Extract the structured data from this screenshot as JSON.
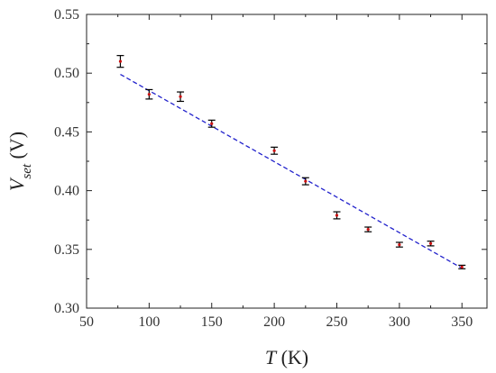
{
  "chart_data": {
    "type": "scatter",
    "x_label_var": "T",
    "x_label_unit": " (K)",
    "y_label_var": "V",
    "y_label_sub": "set",
    "y_label_unit": " (V)",
    "xlim": [
      50,
      370
    ],
    "ylim": [
      0.3,
      0.55
    ],
    "xticks": [
      "50",
      "100",
      "150",
      "200",
      "250",
      "300",
      "350"
    ],
    "yticks": [
      "0.30",
      "0.35",
      "0.40",
      "0.45",
      "0.50",
      "0.55"
    ],
    "xtick_values": [
      50,
      100,
      150,
      200,
      250,
      300,
      350
    ],
    "ytick_values": [
      0.3,
      0.35,
      0.4,
      0.45,
      0.5,
      0.55
    ],
    "grid": false,
    "points": [
      {
        "x": 77,
        "y": 0.51,
        "err": 0.005
      },
      {
        "x": 100,
        "y": 0.482,
        "err": 0.004
      },
      {
        "x": 125,
        "y": 0.48,
        "err": 0.004
      },
      {
        "x": 150,
        "y": 0.457,
        "err": 0.003
      },
      {
        "x": 200,
        "y": 0.434,
        "err": 0.003
      },
      {
        "x": 225,
        "y": 0.408,
        "err": 0.003
      },
      {
        "x": 250,
        "y": 0.379,
        "err": 0.003
      },
      {
        "x": 275,
        "y": 0.367,
        "err": 0.002
      },
      {
        "x": 300,
        "y": 0.354,
        "err": 0.002
      },
      {
        "x": 325,
        "y": 0.355,
        "err": 0.002
      },
      {
        "x": 350,
        "y": 0.335,
        "err": 0.0015
      }
    ],
    "fit_line": {
      "x": [
        77,
        350
      ],
      "y": [
        0.499,
        0.334
      ]
    },
    "colors": {
      "points": "#cc1111",
      "errorbars": "#000000",
      "fit": "#2222cc"
    }
  }
}
